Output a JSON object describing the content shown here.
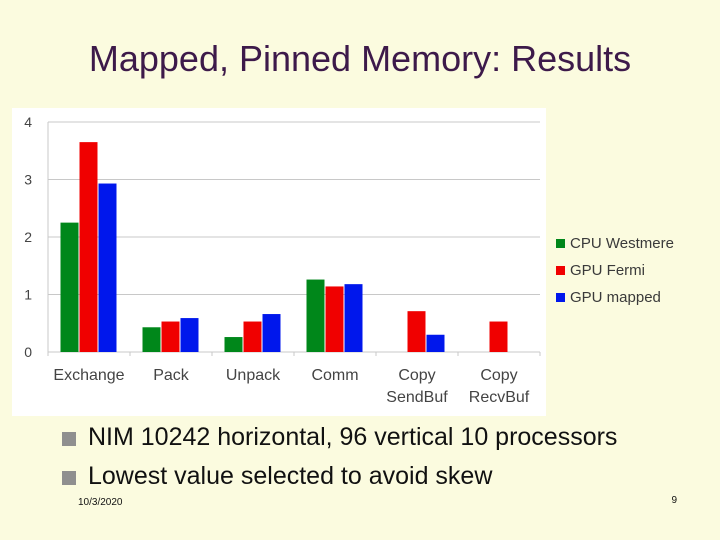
{
  "slide": {
    "title": "Mapped, Pinned Memory: Results",
    "bullets": [
      "NIM 10242 horizontal, 96 vertical 10 processors",
      "Lowest value selected to avoid skew"
    ],
    "date": "10/3/2020",
    "page_number": "9"
  },
  "chart_data": {
    "type": "bar",
    "title": "",
    "xlabel": "",
    "ylabel": "",
    "ylim": [
      0,
      4
    ],
    "yticks": [
      0,
      1,
      2,
      3,
      4
    ],
    "grid": true,
    "legend_position": "right",
    "categories": [
      [
        "Exchange"
      ],
      [
        "Pack"
      ],
      [
        "Unpack"
      ],
      [
        "Comm"
      ],
      [
        "Copy",
        "SendBuf"
      ],
      [
        "Copy",
        "RecvBuf"
      ]
    ],
    "series": [
      {
        "name": "CPU Westmere",
        "color": "#00871a",
        "values": [
          2.25,
          0.43,
          0.26,
          1.26,
          0,
          0
        ]
      },
      {
        "name": "GPU Fermi",
        "color": "#f00000",
        "values": [
          3.65,
          0.53,
          0.53,
          1.14,
          0.71,
          0.53
        ]
      },
      {
        "name": "GPU mapped",
        "color": "#0017ec",
        "values": [
          2.93,
          0.59,
          0.66,
          1.18,
          0.3,
          0
        ]
      }
    ]
  }
}
